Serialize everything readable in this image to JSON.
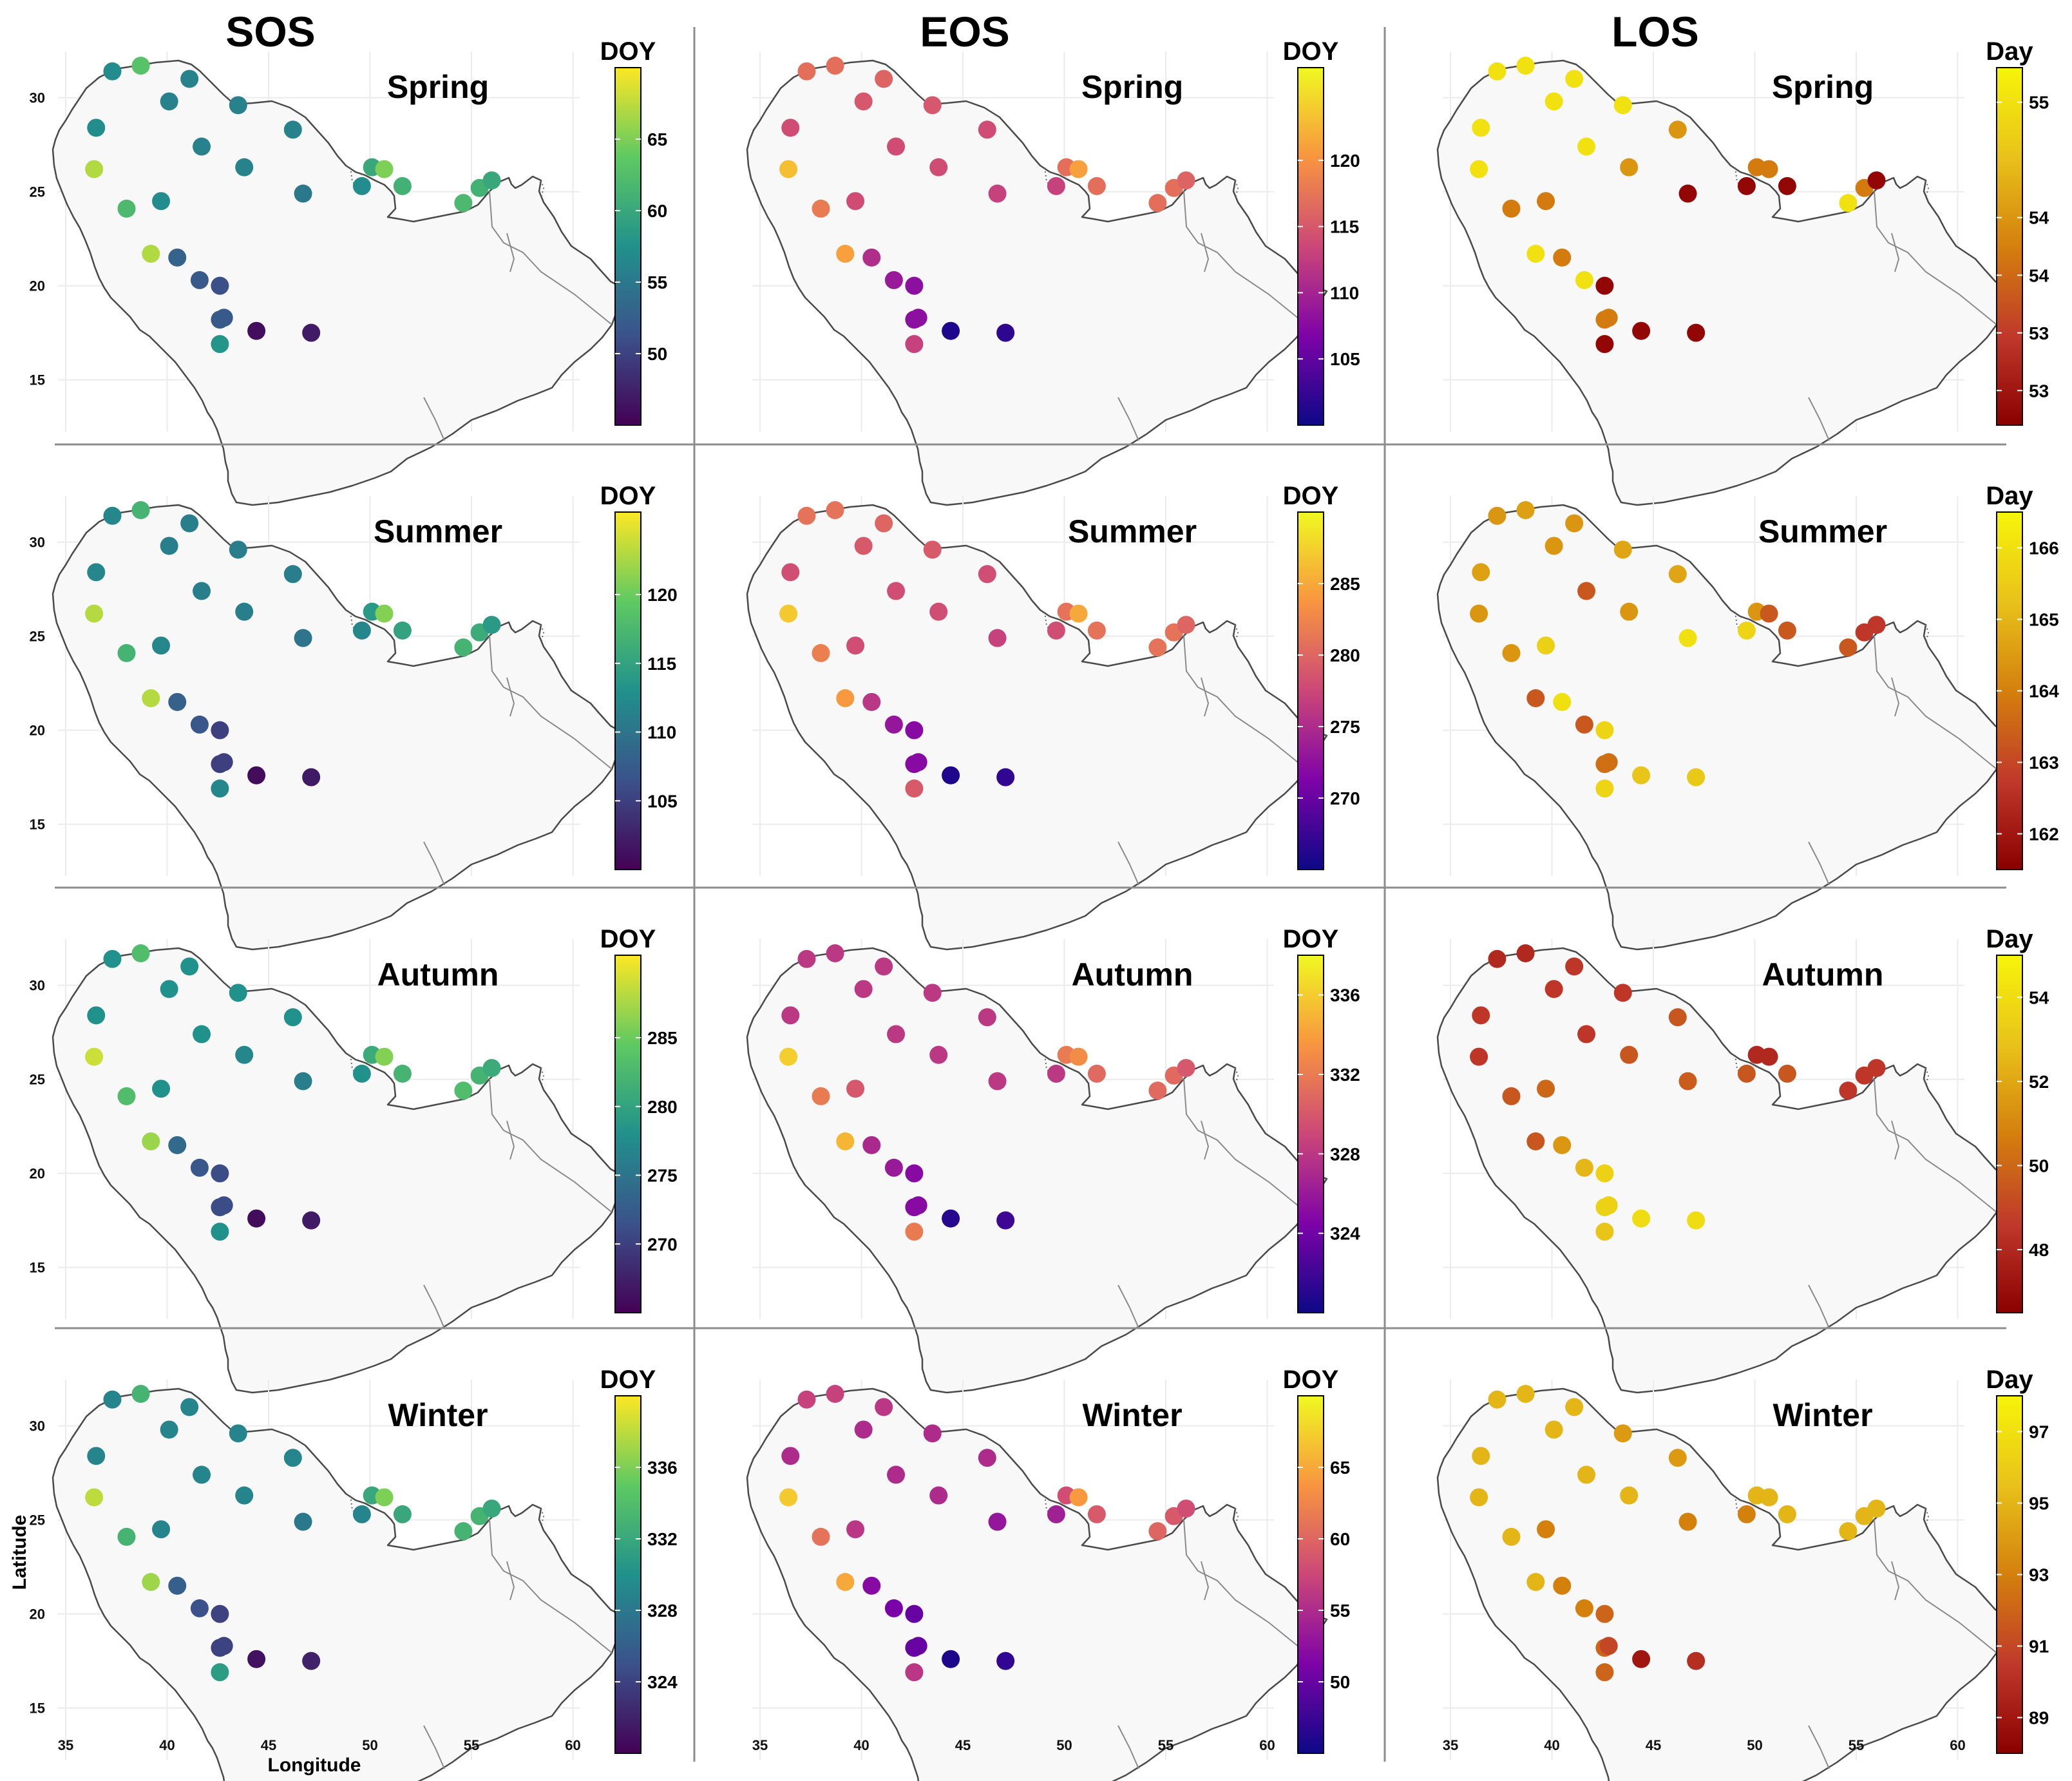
{
  "figure": {
    "columns": [
      {
        "key": "sos",
        "title": "SOS"
      },
      {
        "key": "eos",
        "title": "EOS"
      },
      {
        "key": "los",
        "title": "LOS"
      }
    ],
    "seasons": [
      "Spring",
      "Summer",
      "Autumn",
      "Winter"
    ],
    "axes": {
      "xlabel": "Longitude",
      "ylabel": "Latitude",
      "lon_ticks": [
        "35",
        "40",
        "45",
        "50",
        "55",
        "60"
      ],
      "lat_ticks": [
        "15",
        "20",
        "25",
        "30"
      ],
      "lon_range": [
        34.5,
        60.5
      ],
      "lat_range": [
        12,
        33
      ]
    },
    "stations": [
      {
        "lon": 37.3,
        "lat": 31.4
      },
      {
        "lon": 38.7,
        "lat": 31.7
      },
      {
        "lon": 41.1,
        "lat": 31.0
      },
      {
        "lon": 40.1,
        "lat": 29.8
      },
      {
        "lon": 43.5,
        "lat": 29.6
      },
      {
        "lon": 46.2,
        "lat": 28.3
      },
      {
        "lon": 36.5,
        "lat": 28.4
      },
      {
        "lon": 41.7,
        "lat": 27.4
      },
      {
        "lon": 43.8,
        "lat": 26.3
      },
      {
        "lon": 50.1,
        "lat": 26.3
      },
      {
        "lon": 50.7,
        "lat": 26.2
      },
      {
        "lon": 51.6,
        "lat": 25.3
      },
      {
        "lon": 49.6,
        "lat": 25.3
      },
      {
        "lon": 46.7,
        "lat": 24.9
      },
      {
        "lon": 36.4,
        "lat": 26.2
      },
      {
        "lon": 38.0,
        "lat": 24.1
      },
      {
        "lon": 39.7,
        "lat": 24.5
      },
      {
        "lon": 54.6,
        "lat": 24.4
      },
      {
        "lon": 55.4,
        "lat": 25.2
      },
      {
        "lon": 56.0,
        "lat": 25.6
      },
      {
        "lon": 39.2,
        "lat": 21.7
      },
      {
        "lon": 40.5,
        "lat": 21.5
      },
      {
        "lon": 41.6,
        "lat": 20.3
      },
      {
        "lon": 42.6,
        "lat": 20.0
      },
      {
        "lon": 42.6,
        "lat": 18.2
      },
      {
        "lon": 42.8,
        "lat": 18.3
      },
      {
        "lon": 44.4,
        "lat": 17.6
      },
      {
        "lon": 47.1,
        "lat": 17.5
      },
      {
        "lon": 42.6,
        "lat": 16.9
      }
    ],
    "panels": [
      {
        "column": "sos",
        "season": "Spring",
        "legend_title": "DOY",
        "palette": "viridis",
        "range": [
          45,
          70
        ],
        "ticks": [
          "65",
          "60",
          "55",
          "50"
        ],
        "tick_values": [
          65,
          60,
          55,
          50
        ],
        "values": [
          57,
          63,
          56,
          56,
          56,
          56,
          57,
          56,
          56,
          60,
          65,
          61,
          57,
          55,
          67,
          62,
          57,
          62,
          61,
          60,
          67,
          53,
          52,
          51,
          52,
          52,
          46,
          47,
          58
        ]
      },
      {
        "column": "eos",
        "season": "Spring",
        "legend_title": "DOY",
        "palette": "plasma",
        "range": [
          100,
          127
        ],
        "ticks": [
          "120",
          "115",
          "110",
          "105"
        ],
        "tick_values": [
          120,
          115,
          110,
          105
        ],
        "values": [
          117,
          117,
          116,
          115,
          115,
          114,
          114,
          114,
          114,
          117,
          121,
          117,
          113,
          113,
          123,
          118,
          114,
          117,
          117,
          116,
          121,
          111,
          109,
          108,
          108,
          108,
          101,
          102,
          113
        ]
      },
      {
        "column": "los",
        "season": "Spring",
        "legend_title": "Day",
        "palette": "heat",
        "range": [
          52.5,
          55.6
        ],
        "ticks": [
          "55",
          "54",
          "54",
          "53",
          "53"
        ],
        "tick_values": [
          55.3,
          54.3,
          53.8,
          53.3,
          52.8
        ],
        "values": [
          55.3,
          55.3,
          55.3,
          55.3,
          55.3,
          54.3,
          55.3,
          55.3,
          54.3,
          54.0,
          54.0,
          52.6,
          52.6,
          52.6,
          55.3,
          54.0,
          54.0,
          55.3,
          54.0,
          52.6,
          55.3,
          54.0,
          55.3,
          52.6,
          54.0,
          54.0,
          52.6,
          52.6,
          52.6
        ]
      },
      {
        "column": "sos",
        "season": "Summer",
        "legend_title": "DOY",
        "palette": "viridis",
        "range": [
          100,
          126
        ],
        "ticks": [
          "120",
          "115",
          "110",
          "105"
        ],
        "tick_values": [
          120,
          115,
          110,
          105
        ],
        "values": [
          112,
          117,
          111,
          111,
          111,
          111,
          112,
          111,
          111,
          114,
          121,
          115,
          112,
          110,
          123,
          117,
          112,
          117,
          116,
          114,
          123,
          108,
          107,
          105,
          105,
          105,
          101,
          102,
          112
        ]
      },
      {
        "column": "eos",
        "season": "Summer",
        "legend_title": "DOY",
        "palette": "plasma",
        "range": [
          265,
          290
        ],
        "ticks": [
          "285",
          "280",
          "275",
          "270"
        ],
        "tick_values": [
          285,
          280,
          275,
          270
        ],
        "values": [
          281,
          281,
          280,
          279,
          279,
          278,
          278,
          278,
          278,
          281,
          285,
          281,
          278,
          277,
          287,
          282,
          278,
          281,
          281,
          280,
          284,
          276,
          273,
          272,
          272,
          272,
          266,
          267,
          279
        ]
      },
      {
        "column": "los",
        "season": "Summer",
        "legend_title": "Day",
        "palette": "heat",
        "range": [
          161.5,
          166.5
        ],
        "ticks": [
          "166",
          "165",
          "164",
          "163",
          "162"
        ],
        "tick_values": [
          166,
          165,
          164,
          163,
          162
        ],
        "values": [
          164.4,
          164.6,
          164.4,
          164.4,
          164.7,
          164.7,
          164.6,
          163.3,
          164.4,
          164.4,
          163.3,
          163.3,
          165.7,
          166.0,
          164.4,
          164.4,
          165.6,
          163.3,
          162.7,
          162.7,
          163.3,
          166.0,
          163.3,
          165.7,
          163.7,
          163.7,
          165.3,
          165.4,
          165.7
        ]
      },
      {
        "column": "sos",
        "season": "Autumn",
        "legend_title": "DOY",
        "palette": "viridis",
        "range": [
          265,
          291
        ],
        "ticks": [
          "285",
          "280",
          "275",
          "270"
        ],
        "tick_values": [
          285,
          280,
          275,
          270
        ],
        "values": [
          278,
          283,
          278,
          278,
          278,
          278,
          278,
          278,
          277,
          281,
          286,
          282,
          278,
          276,
          289,
          283,
          278,
          283,
          282,
          281,
          287,
          274,
          272,
          271,
          271,
          271,
          266,
          267,
          278
        ]
      },
      {
        "column": "eos",
        "season": "Autumn",
        "legend_title": "DOY",
        "palette": "plasma",
        "range": [
          320,
          338
        ],
        "ticks": [
          "336",
          "332",
          "328",
          "324"
        ],
        "tick_values": [
          336,
          332,
          328,
          324
        ],
        "values": [
          328,
          328,
          328,
          328,
          328,
          328,
          328,
          328,
          328,
          332,
          333,
          331,
          328,
          328,
          336,
          332,
          330,
          331,
          331,
          330,
          335,
          327,
          326,
          325,
          325,
          325,
          321,
          322,
          332
        ]
      },
      {
        "column": "los",
        "season": "Autumn",
        "legend_title": "Day",
        "palette": "heat",
        "range": [
          46.5,
          55
        ],
        "ticks": [
          "54",
          "52",
          "50",
          "48"
        ],
        "tick_values": [
          54,
          52,
          50,
          48
        ],
        "values": [
          48.0,
          48.0,
          48.5,
          48.5,
          48.5,
          49.5,
          48.5,
          48.5,
          49.5,
          48.0,
          48.0,
          49.5,
          49.5,
          49.7,
          48.5,
          49.5,
          50.0,
          48.5,
          48.5,
          48.5,
          49.5,
          51.5,
          52.5,
          53.5,
          53.5,
          53.5,
          54.0,
          54.0,
          53.0
        ]
      },
      {
        "column": "sos",
        "season": "Winter",
        "legend_title": "DOY",
        "palette": "viridis",
        "range": [
          320,
          340
        ],
        "ticks": [
          "336",
          "332",
          "328",
          "324"
        ],
        "tick_values": [
          336,
          332,
          328,
          324
        ],
        "values": [
          329,
          333,
          329,
          329,
          329,
          329,
          329,
          329,
          329,
          332,
          336,
          332,
          329,
          328,
          338,
          333,
          329,
          333,
          333,
          332,
          337,
          326,
          325,
          324,
          324,
          324,
          321,
          322,
          331
        ]
      },
      {
        "column": "eos",
        "season": "Winter",
        "legend_title": "DOY",
        "palette": "plasma",
        "range": [
          45,
          70
        ],
        "ticks": [
          "65",
          "60",
          "55",
          "50"
        ],
        "tick_values": [
          65,
          60,
          55,
          50
        ],
        "values": [
          57,
          57,
          56,
          55,
          55,
          55,
          55,
          55,
          55,
          58,
          64,
          59,
          54,
          53,
          67,
          61,
          56,
          60,
          59,
          58,
          65,
          52,
          51,
          50,
          50,
          50,
          46,
          47,
          56
        ]
      },
      {
        "column": "los",
        "season": "Winter",
        "legend_title": "Day",
        "palette": "heat",
        "range": [
          88,
          98
        ],
        "ticks": [
          "97",
          "95",
          "93",
          "91",
          "89"
        ],
        "tick_values": [
          97,
          95,
          93,
          91,
          89
        ],
        "values": [
          95,
          95,
          95,
          95,
          94,
          94,
          95,
          95,
          95,
          95,
          95,
          95,
          93,
          93,
          95,
          95,
          93,
          95,
          95,
          95,
          95,
          93,
          93,
          92,
          92,
          91,
          89,
          90,
          92
        ]
      }
    ],
    "colors": {
      "viridis": [
        "#440154",
        "#3b528b",
        "#21918c",
        "#5ec962",
        "#fde725"
      ],
      "plasma": [
        "#0d0887",
        "#7e03a8",
        "#cc4778",
        "#f89540",
        "#f0f921"
      ],
      "heat": [
        "#8b0000",
        "#c0392b",
        "#d4800d",
        "#e8c21a",
        "#f7f40a"
      ],
      "separator": "#8c8c8c",
      "land": "#f8f8f8"
    }
  }
}
